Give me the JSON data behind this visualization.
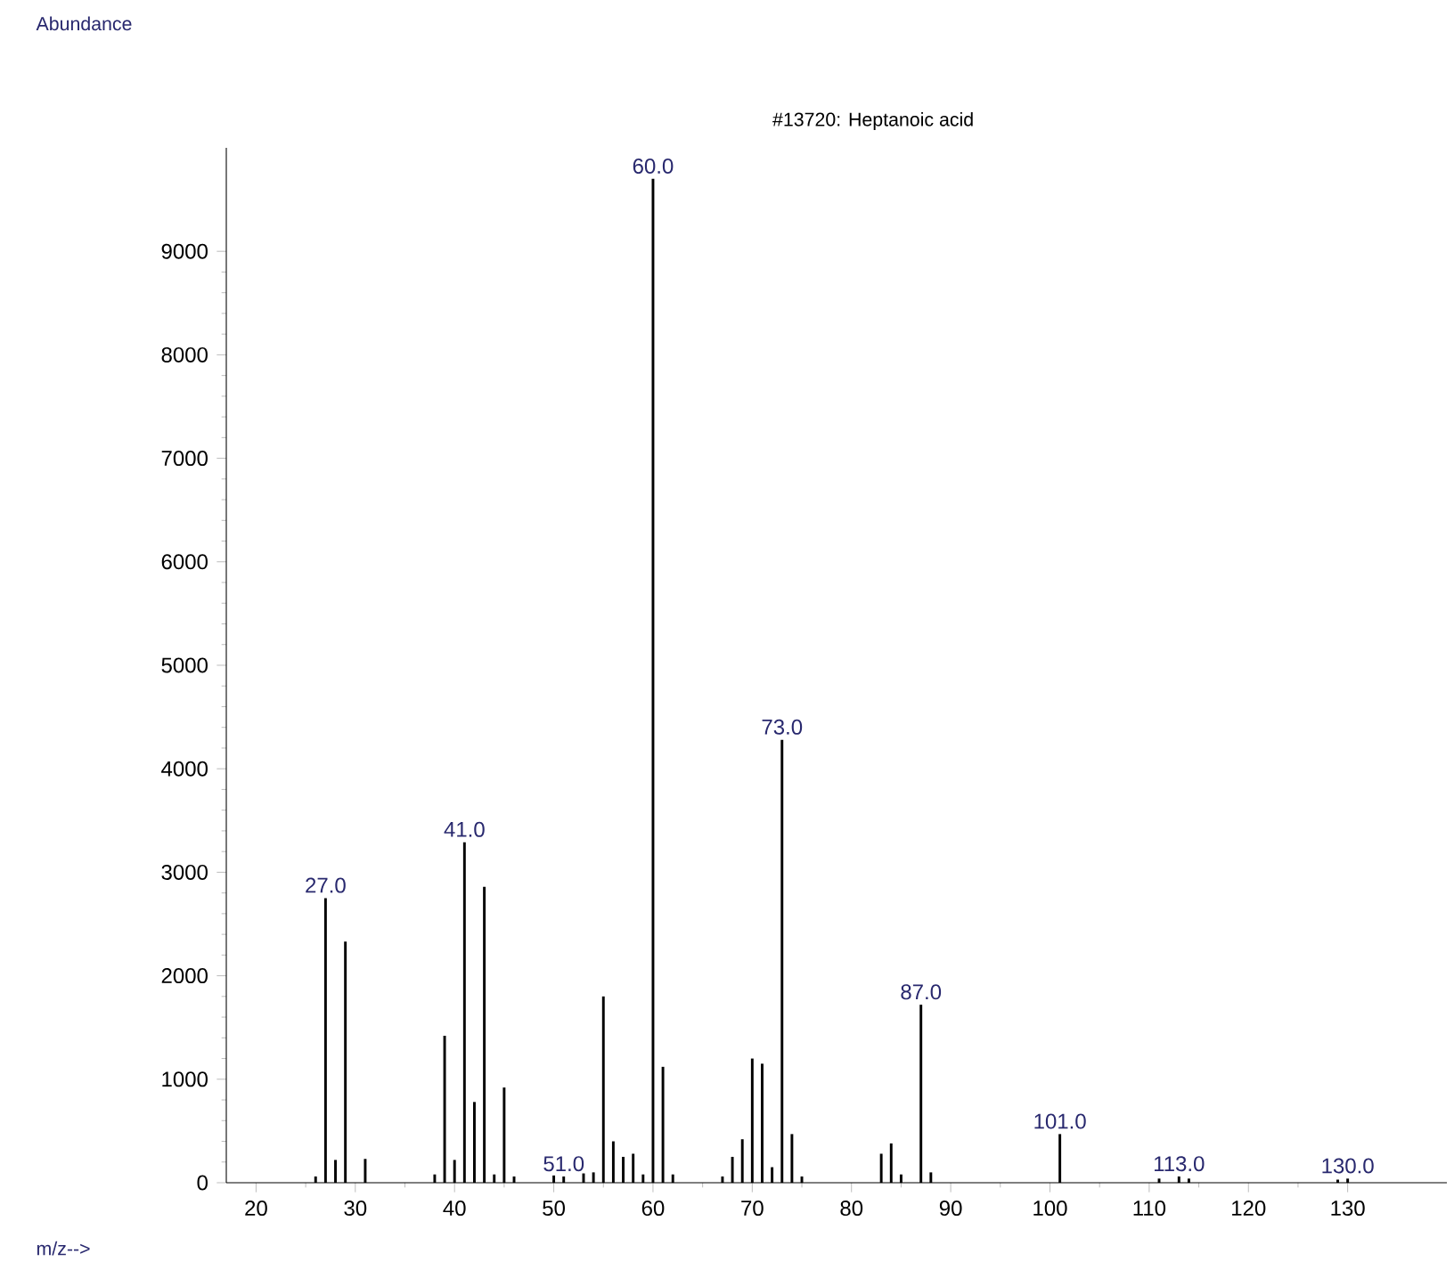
{
  "chart_data": {
    "type": "bar",
    "title": "#13720: Heptanoic acid",
    "xlabel": "m/z-->",
    "x": [
      26,
      27,
      28,
      29,
      31,
      38,
      39,
      40,
      41,
      42,
      43,
      44,
      45,
      46,
      50,
      51,
      53,
      54,
      55,
      56,
      57,
      58,
      59,
      60,
      61,
      62,
      67,
      68,
      69,
      70,
      71,
      72,
      73,
      74,
      75,
      83,
      84,
      85,
      87,
      88,
      101,
      111,
      113,
      114,
      129,
      130
    ],
    "values": [
      60,
      2750,
      220,
      2330,
      230,
      80,
      1420,
      220,
      3290,
      780,
      2860,
      80,
      920,
      60,
      70,
      60,
      90,
      100,
      1800,
      400,
      250,
      280,
      80,
      9700,
      1120,
      80,
      60,
      250,
      420,
      1200,
      1150,
      150,
      4280,
      470,
      60,
      280,
      380,
      80,
      1720,
      100,
      470,
      40,
      60,
      40,
      30,
      40
    ],
    "color": "#000000",
    "xlim": [
      17,
      140
    ],
    "ylim": [
      0,
      10000
    ],
    "xticks": [
      20,
      30,
      40,
      50,
      60,
      70,
      80,
      90,
      100,
      110,
      120,
      130
    ],
    "yticks": [
      0,
      1000,
      2000,
      3000,
      4000,
      5000,
      6000,
      7000,
      8000,
      9000
    ],
    "grid": false,
    "annotations": [
      "Abundance",
      {
        "text": "27.0",
        "x": 27,
        "y": 2750
      },
      {
        "text": "41.0",
        "x": 41,
        "y": 3290
      },
      {
        "text": "51.0",
        "x": 51,
        "y": 60
      },
      {
        "text": "60.0",
        "x": 60,
        "y": 9700
      },
      {
        "text": "73.0",
        "x": 73,
        "y": 4280
      },
      {
        "text": "87.0",
        "x": 87,
        "y": 1720
      },
      {
        "text": "101.0",
        "x": 101,
        "y": 470
      },
      {
        "text": "113.0",
        "x": 113,
        "y": 60
      },
      {
        "text": "130.0",
        "x": 130,
        "y": 40
      }
    ]
  }
}
